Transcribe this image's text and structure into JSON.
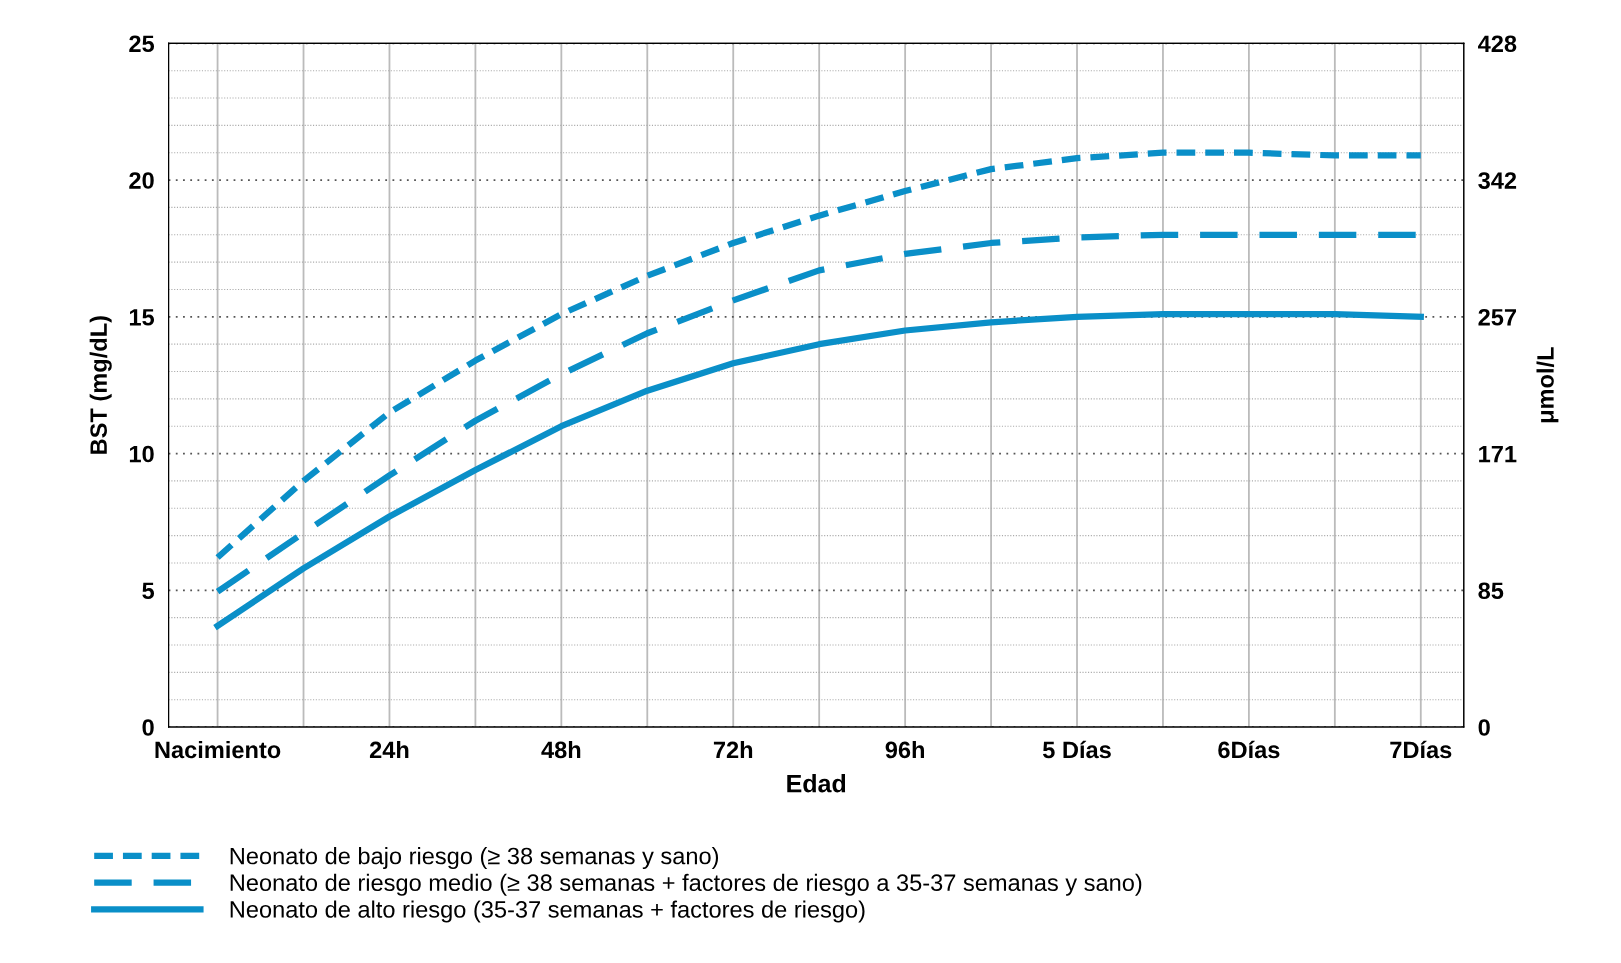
{
  "chart_data": {
    "type": "line",
    "xlabel": "Edad",
    "ylabel": "BST (mg/dL)",
    "y2label": "μmol/L",
    "categories": [
      "Nacimiento",
      null,
      "24h",
      null,
      "48h",
      null,
      "72h",
      null,
      "96h",
      null,
      "5 Días",
      null,
      "6Días",
      null,
      "7Días"
    ],
    "series": [
      {
        "name": "Neonato de bajo riesgo (≥ 38 semanas y sano)",
        "color": "#0a8fc8",
        "line_style": "dashed",
        "values": [
          6.2,
          9.0,
          11.5,
          13.4,
          15.1,
          16.5,
          17.7,
          18.7,
          19.6,
          20.4,
          20.8,
          21.0,
          21.0,
          20.9,
          20.9
        ]
      },
      {
        "name": "Neonato de riesgo medio (≥ 38 semanas + factores de riesgo a 35-37 semanas y sano)",
        "color": "#0a8fc8",
        "line_style": "dashed",
        "values": [
          4.95,
          7.1,
          9.2,
          11.2,
          12.9,
          14.4,
          15.6,
          16.7,
          17.3,
          17.7,
          17.9,
          18.0,
          18.0,
          18.0,
          18.0
        ]
      },
      {
        "name": "Neonato de alto riesgo (35-37 semanas + factores de riesgo)",
        "color": "#0a8fc8",
        "line_style": "solid",
        "values": [
          3.7,
          5.8,
          7.7,
          9.4,
          11.0,
          12.3,
          13.3,
          14.0,
          14.5,
          14.8,
          15.0,
          15.1,
          15.1,
          15.1,
          15.0
        ]
      }
    ],
    "ylim": [
      0,
      25
    ],
    "yticks": [
      0,
      5,
      10,
      15,
      20,
      25
    ],
    "y2lim": [
      0,
      427.5
    ],
    "y2ticks": [
      0,
      {
        "value": 85.5,
        "label": "85"
      },
      171,
      {
        "value": 256.5,
        "label": "257"
      },
      342,
      {
        "value": 427.5,
        "label": "428"
      }
    ],
    "grid": true,
    "legend": "bottom left"
  }
}
